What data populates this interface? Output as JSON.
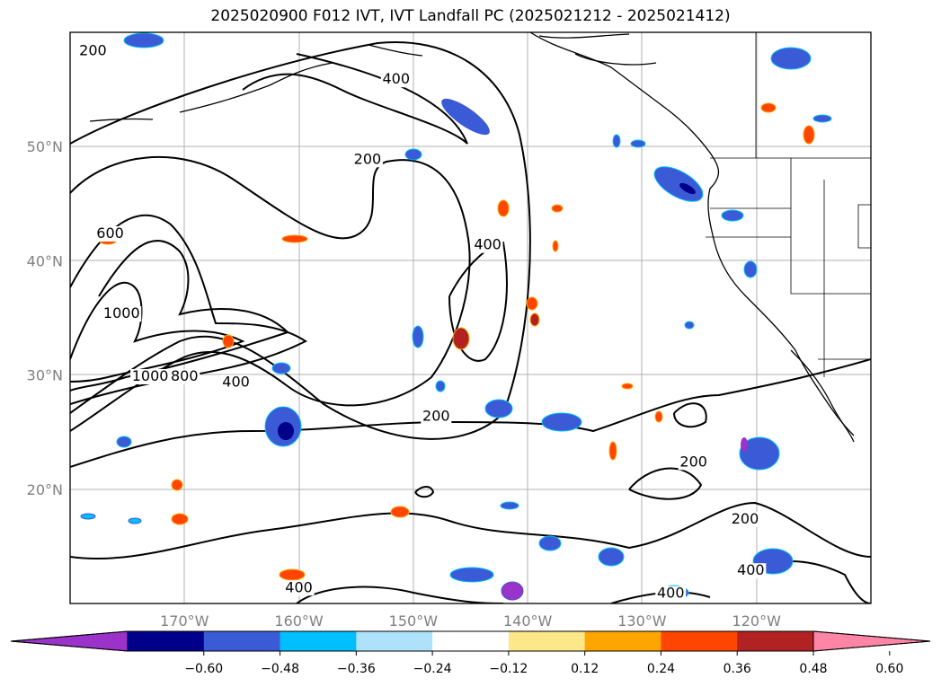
{
  "title": "2025020900 F012 IVT, IVT Landfall PC (2025021212 - 2025021412)",
  "map": {
    "lon_range": [
      -180,
      -110
    ],
    "lat_range": [
      10,
      60
    ],
    "lat_ticks": [
      {
        "value": 20,
        "label": "20°N"
      },
      {
        "value": 30,
        "label": "30°N"
      },
      {
        "value": 40,
        "label": "40°N"
      },
      {
        "value": 50,
        "label": "50°N"
      }
    ],
    "lon_ticks": [
      {
        "value": -170,
        "label": "170°W"
      },
      {
        "value": -160,
        "label": "160°W"
      },
      {
        "value": -150,
        "label": "150°W"
      },
      {
        "value": -140,
        "label": "140°W"
      },
      {
        "value": -130,
        "label": "130°W"
      },
      {
        "value": -120,
        "label": "120°W"
      }
    ],
    "contour_labels": [
      {
        "text": "200",
        "lon": -178.0,
        "lat": 58.0
      },
      {
        "text": "400",
        "lon": -151.5,
        "lat": 55.5
      },
      {
        "text": "200",
        "lon": -154.0,
        "lat": 48.5
      },
      {
        "text": "600",
        "lon": -176.5,
        "lat": 42.0
      },
      {
        "text": "1000",
        "lon": -175.5,
        "lat": 35.0
      },
      {
        "text": "400",
        "lon": -143.5,
        "lat": 41.0
      },
      {
        "text": "1000",
        "lon": -173.0,
        "lat": 29.5
      },
      {
        "text": "800",
        "lon": -170.0,
        "lat": 29.5
      },
      {
        "text": "400",
        "lon": -165.5,
        "lat": 29.0
      },
      {
        "text": "200",
        "lon": -148.0,
        "lat": 26.0
      },
      {
        "text": "200",
        "lon": -125.5,
        "lat": 22.0
      },
      {
        "text": "200",
        "lon": -121.0,
        "lat": 17.0
      },
      {
        "text": "400",
        "lon": -120.5,
        "lat": 12.5
      },
      {
        "text": "400",
        "lon": -160.0,
        "lat": 11.0
      },
      {
        "text": "400",
        "lon": -127.5,
        "lat": 10.5
      }
    ]
  },
  "colorbar": {
    "colors": [
      "#9b32c9",
      "#00008b",
      "#3b5bd6",
      "#00bfff",
      "#aee2fa",
      "#ffffff",
      "#fce88a",
      "#ffa500",
      "#ff4500",
      "#b22222",
      "#ff85a6"
    ],
    "tick_labels": [
      "−0.60",
      "−0.48",
      "−0.36",
      "−0.24",
      "−0.12",
      "0.12",
      "0.24",
      "0.36",
      "0.48",
      "0.60"
    ]
  }
}
